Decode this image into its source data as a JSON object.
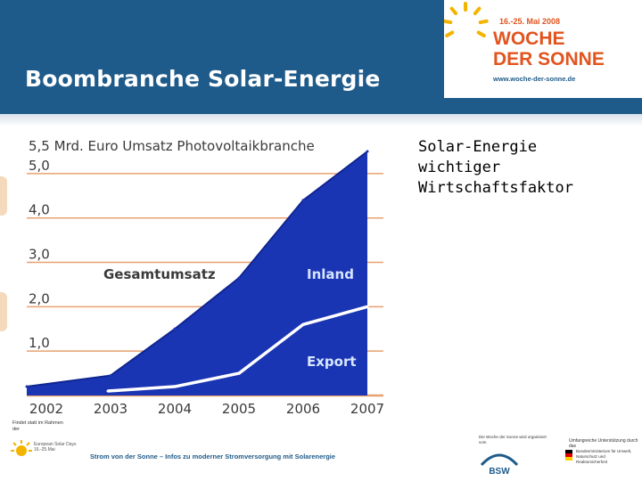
{
  "header": {
    "title": "Boombranche Solar-Energie",
    "logo": {
      "date": "16.-25. Mai 2008",
      "name_line1": "WOCHE",
      "name_line2": "DER SONNE",
      "url": "www.woche-der-sonne.de"
    }
  },
  "side_text": {
    "line1": "Solar-Energie",
    "line2": "wichtiger",
    "line3": "Wirtschaftsfaktor"
  },
  "chart_data": {
    "type": "area",
    "title": "5,5 Mrd. Euro Umsatz Photovoltaikbranche",
    "categories": [
      "2002",
      "2003",
      "2004",
      "2005",
      "2006",
      "2007"
    ],
    "series": [
      {
        "name": "Gesamtumsatz",
        "label": "Gesamtumsatz",
        "values": [
          0.2,
          0.45,
          1.5,
          2.65,
          4.4,
          5.5
        ],
        "color": "#1a35b3"
      },
      {
        "name": "Export",
        "label": "Export",
        "values": [
          null,
          0.1,
          0.2,
          0.5,
          1.6,
          2.0
        ],
        "color": "#ffffff"
      }
    ],
    "region_labels": [
      "Inland",
      "Export"
    ],
    "y_ticks": [
      "5,0",
      "4,0",
      "3,0",
      "2,0",
      "1,0"
    ],
    "y_tick_values": [
      5.0,
      4.0,
      3.0,
      2.0,
      1.0
    ],
    "ylim": [
      0,
      5.5
    ],
    "xlabel": "",
    "ylabel": "",
    "grid": true,
    "colors": {
      "area": "#1a35b3",
      "grid": "#e8a070",
      "text": "#3a3a3a",
      "region_label": "#d7e6ff"
    }
  },
  "footer": {
    "note": "Findet statt im Rahmen der",
    "event_logo_text": "European Solar Days 16.-25.Mai",
    "main_text": "Strom von der Sonne – Infos zu moderner Stromversorgung mit Solarenergie",
    "partner1_text": "Die Woche der Sonne wird organisiert vom",
    "partner1_logo": "BSW",
    "partner2_text": "Umfangreiche Unterstützung durch das",
    "partner2_logo": "Bundesministerium für Umwelt, Naturschutz und Reaktorsicherheit"
  }
}
